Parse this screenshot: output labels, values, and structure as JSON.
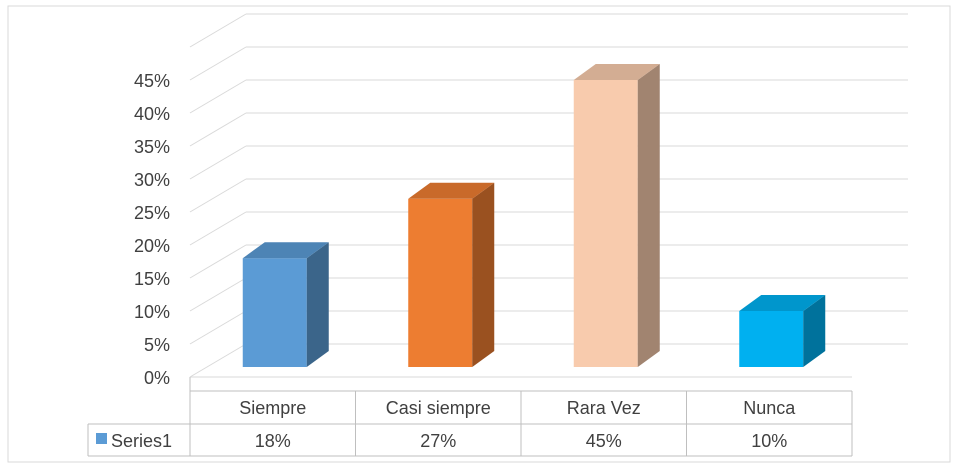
{
  "chart_data": {
    "type": "bar",
    "style": "3d-column-with-data-table",
    "categories": [
      "Siempre",
      "Casi siempre",
      "Rara Vez",
      "Nunca"
    ],
    "series": [
      {
        "name": "Series1",
        "values": [
          18,
          27,
          45,
          10
        ],
        "value_labels": [
          "18%",
          "27%",
          "45%",
          "10%"
        ]
      }
    ],
    "y_tick_labels": [
      "0%",
      "5%",
      "10%",
      "15%",
      "20%",
      "25%",
      "30%",
      "35%",
      "40%",
      "45%"
    ],
    "ylim": [
      0,
      50
    ],
    "ytick_step": 5,
    "grid": true,
    "legend": "data-table-left",
    "bar_colors": [
      "#5B9BD5",
      "#ED7D31",
      "#F8CBAD",
      "#00B0F0"
    ],
    "gridline_color": "#D9D9D9",
    "legend_key_color": "#5B9BD5"
  }
}
